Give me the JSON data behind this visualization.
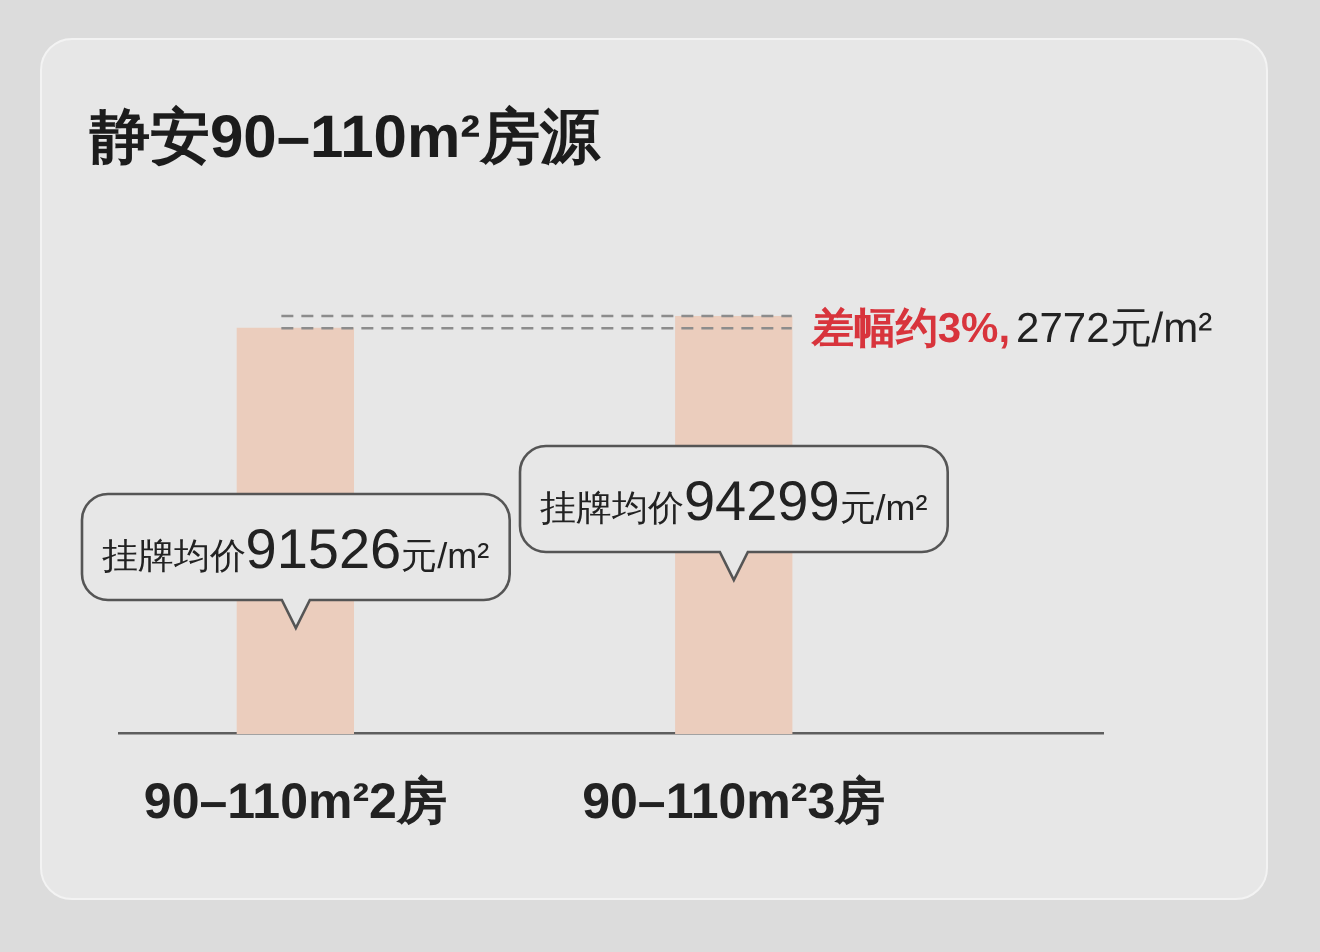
{
  "chart_data": {
    "type": "bar",
    "title": "静安90–110m²房源",
    "categories": [
      "90–110m²2房",
      "90–110m²3房"
    ],
    "values": [
      91526,
      94299
    ],
    "color": "#ebcdbd",
    "value_labels": [
      "挂牌均价91526元/m²",
      "挂牌均价94299元/m²"
    ],
    "tick_labels": "x",
    "ref_lines": [
      {
        "axis": "y",
        "value": 94299,
        "color": "#8c8c8c",
        "line_style": "dashed"
      },
      {
        "axis": "y",
        "value": 91526,
        "color": "#8c8c8c",
        "line_style": "dashed"
      }
    ],
    "annotations": [
      "差幅约3%,",
      "2772元/m²"
    ]
  }
}
